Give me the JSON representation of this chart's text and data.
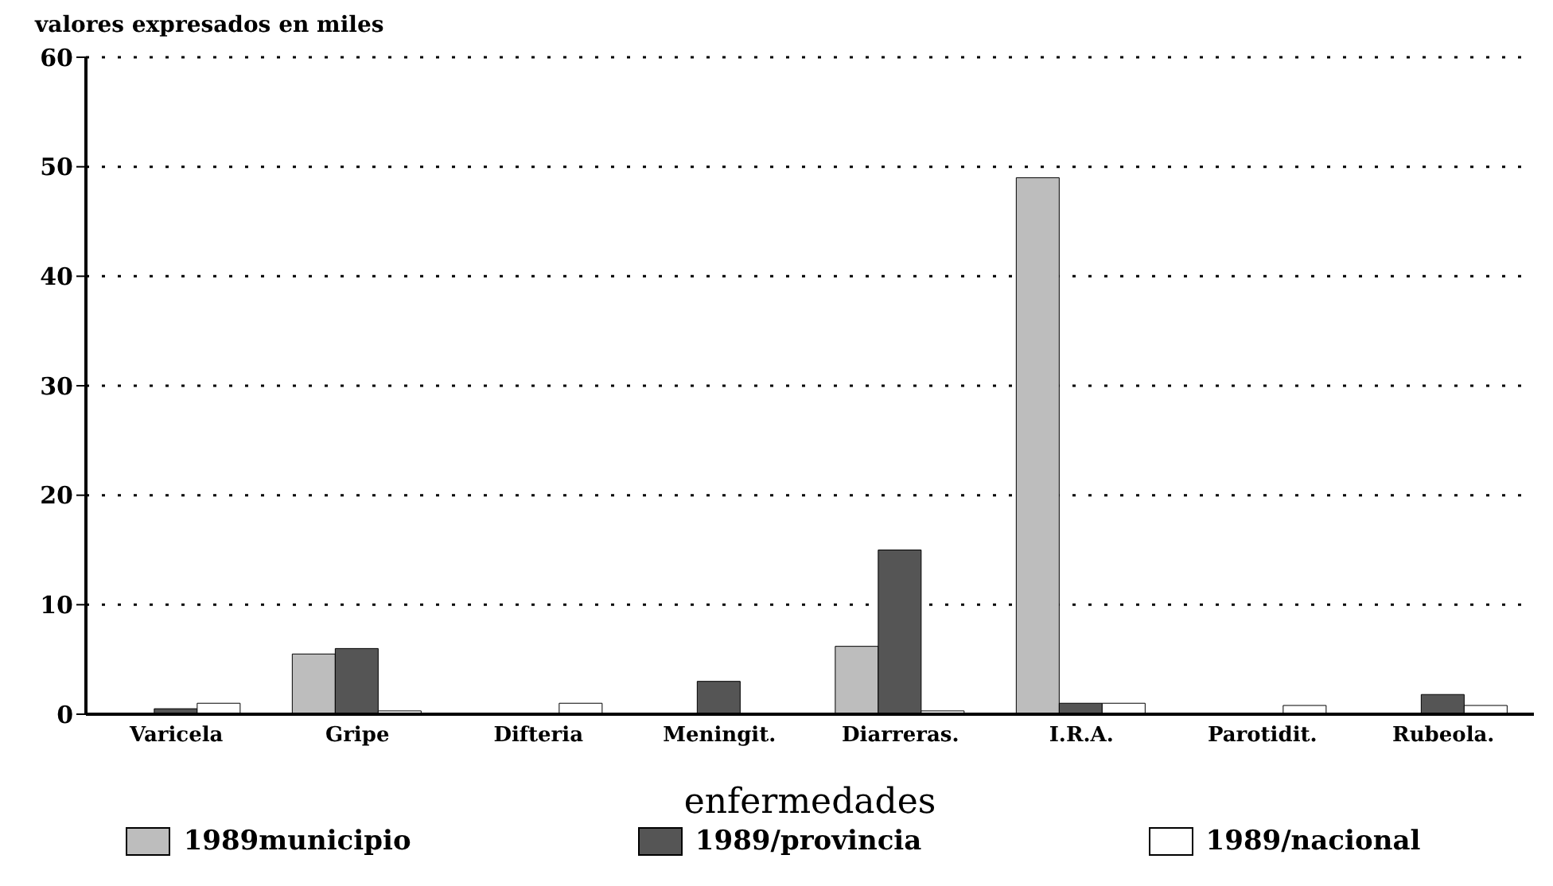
{
  "chart_data": {
    "type": "bar",
    "ylabel": "valores expresados en miles",
    "xlabel": "enfermedades",
    "categories": [
      "Varicela",
      "Gripe",
      "Difteria",
      "Meningit.",
      "Diarreras.",
      "I.R.A.",
      "Parotidit.",
      "Rubeola."
    ],
    "series": [
      {
        "name": "1989municipio",
        "color": "#bdbdbd",
        "values": [
          null,
          5.5,
          0.1,
          0.1,
          6.2,
          49,
          0.1,
          0.1
        ]
      },
      {
        "name": "1989/provincia",
        "color": "#555555",
        "values": [
          0.5,
          6,
          null,
          3,
          15,
          1,
          null,
          1.8
        ]
      },
      {
        "name": "1989/nacional",
        "color": "#ffffff",
        "values": [
          1,
          0.3,
          1,
          null,
          0.3,
          1,
          0.8,
          0.8
        ]
      }
    ],
    "ylim": [
      0,
      60
    ],
    "yticks": [
      0,
      10,
      20,
      30,
      40,
      50,
      60
    ],
    "grid": "y",
    "legend": "bottom"
  }
}
